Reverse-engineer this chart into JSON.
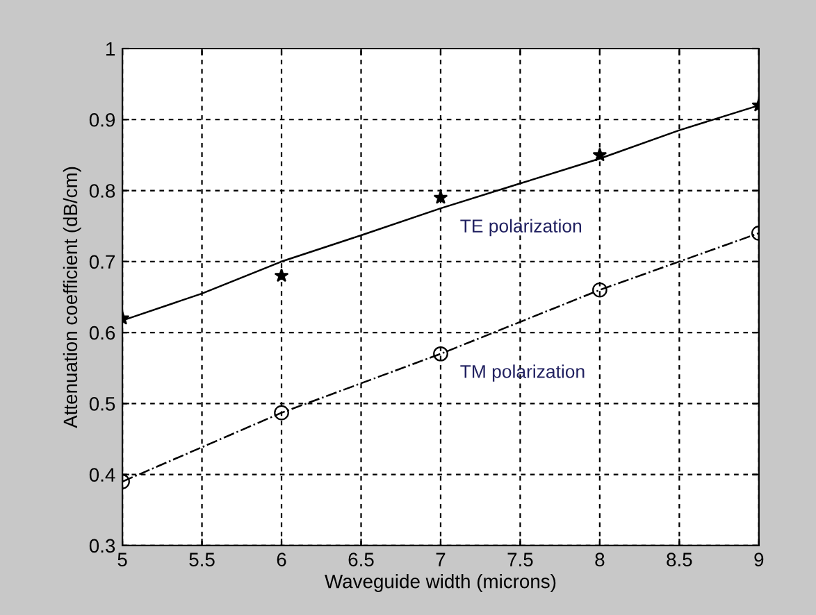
{
  "chart_data": {
    "type": "line",
    "xlabel": "Waveguide width (microns)",
    "ylabel": "Attenuation coefficient (dB/cm)",
    "xlim": [
      5,
      9
    ],
    "ylim": [
      0.3,
      1
    ],
    "xticks": [
      5,
      5.5,
      6,
      6.5,
      7,
      7.5,
      8,
      8.5,
      9
    ],
    "yticks": [
      0.3,
      0.4,
      0.5,
      0.6,
      0.7,
      0.8,
      0.9,
      1
    ],
    "grid": true,
    "legend": false,
    "series": [
      {
        "type": "scatter",
        "marker": "star",
        "color": "#000000",
        "x": [
          5,
          6,
          7,
          8,
          9
        ],
        "values": [
          0.62,
          0.68,
          0.79,
          0.85,
          0.92
        ]
      },
      {
        "marker": "none",
        "line_style": "solid",
        "color": "#000000",
        "x": [
          5,
          5.5,
          6,
          6.5,
          7,
          7.5,
          8,
          8.5,
          9
        ],
        "values": [
          0.617,
          0.655,
          0.7,
          0.737,
          0.775,
          0.81,
          0.845,
          0.885,
          0.92
        ]
      },
      {
        "type": "line",
        "marker": "circle",
        "line_style": "dashed",
        "color": "#000000",
        "x": [
          5,
          6,
          7,
          8,
          9
        ],
        "values": [
          0.39,
          0.487,
          0.57,
          0.66,
          0.74
        ]
      }
    ],
    "annotations": [
      {
        "text": "TE polarization",
        "x": 7,
        "y": 0.775
      },
      {
        "text": "TM polarization",
        "x": 7,
        "y": 0.57
      }
    ]
  }
}
